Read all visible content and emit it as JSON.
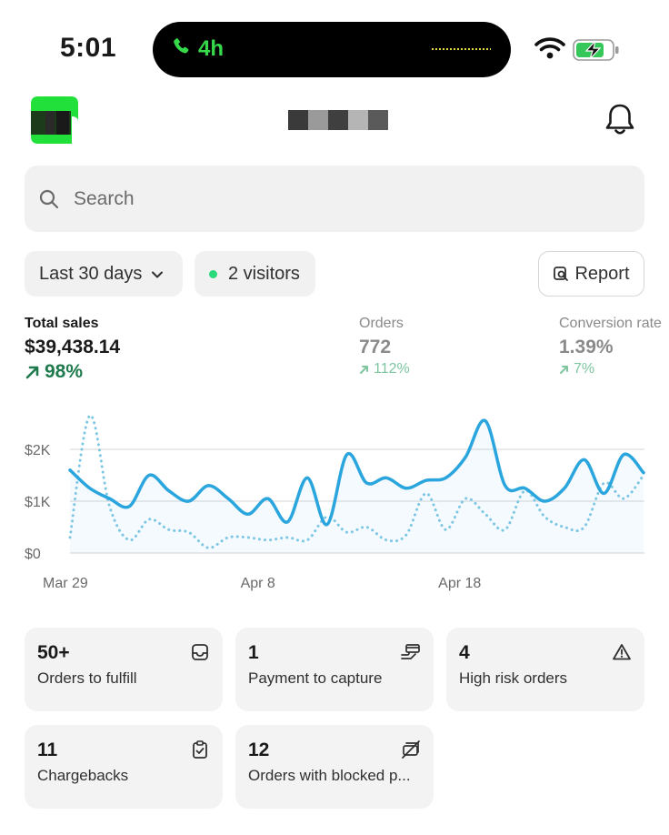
{
  "status_bar": {
    "time": "5:01",
    "call_duration": "4h"
  },
  "search": {
    "placeholder": "Search"
  },
  "filters": {
    "date_range": "Last 30 days",
    "visitors": "2 visitors",
    "report_label": "Report"
  },
  "metrics": [
    {
      "label": "Total sales",
      "value": "$39,438.14",
      "change": "98%"
    },
    {
      "label": "Orders",
      "value": "772",
      "change": "112%"
    },
    {
      "label": "Conversion rate",
      "value": "1.39%",
      "change": "7%"
    }
  ],
  "colors": {
    "accent_green": "#1f7a4d",
    "series_current": "#2aa5dd",
    "series_previous": "#7cc6e4",
    "status_green": "#29d97a"
  },
  "chart_data": {
    "type": "line",
    "x_tick_labels": [
      "Mar 29",
      "Apr 8",
      "Apr 18"
    ],
    "y_tick_labels": [
      "$0",
      "$1K",
      "$2K"
    ],
    "ylim": [
      0,
      2300
    ],
    "x": [
      "Mar 29",
      "Mar 30",
      "Mar 31",
      "Apr 1",
      "Apr 2",
      "Apr 3",
      "Apr 4",
      "Apr 5",
      "Apr 6",
      "Apr 7",
      "Apr 8",
      "Apr 9",
      "Apr 10",
      "Apr 11",
      "Apr 12",
      "Apr 13",
      "Apr 14",
      "Apr 15",
      "Apr 16",
      "Apr 17",
      "Apr 18",
      "Apr 19",
      "Apr 20",
      "Apr 21",
      "Apr 22",
      "Apr 23",
      "Apr 24",
      "Apr 25",
      "Apr 26",
      "Apr 27"
    ],
    "series": [
      {
        "values": [
          1600,
          1250,
          1050,
          900,
          1500,
          1200,
          1000,
          1300,
          1050,
          750,
          1050,
          600,
          1450,
          550,
          1900,
          1350,
          1450,
          1250,
          1400,
          1450,
          1850,
          2550,
          1300,
          1250,
          1000,
          1250,
          1800,
          1150,
          1900,
          1550
        ],
        "style": "solid"
      },
      {
        "values": [
          300,
          2650,
          900,
          250,
          650,
          450,
          400,
          100,
          300,
          300,
          250,
          300,
          250,
          700,
          400,
          500,
          250,
          350,
          1150,
          450,
          1050,
          750,
          450,
          1200,
          700,
          500,
          500,
          1350,
          1050,
          1500
        ],
        "style": "dotted"
      }
    ],
    "grid": true
  },
  "cards": [
    {
      "count": "50+",
      "label": "Orders to fulfill",
      "icon": "inbox-icon"
    },
    {
      "count": "1",
      "label": "Payment to capture",
      "icon": "payment-hand-icon"
    },
    {
      "count": "4",
      "label": "High risk orders",
      "icon": "alert-triangle-icon"
    },
    {
      "count": "11",
      "label": "Chargebacks",
      "icon": "clipboard-check-icon"
    },
    {
      "count": "12",
      "label": "Orders with blocked p...",
      "icon": "blocked-payment-icon"
    }
  ]
}
